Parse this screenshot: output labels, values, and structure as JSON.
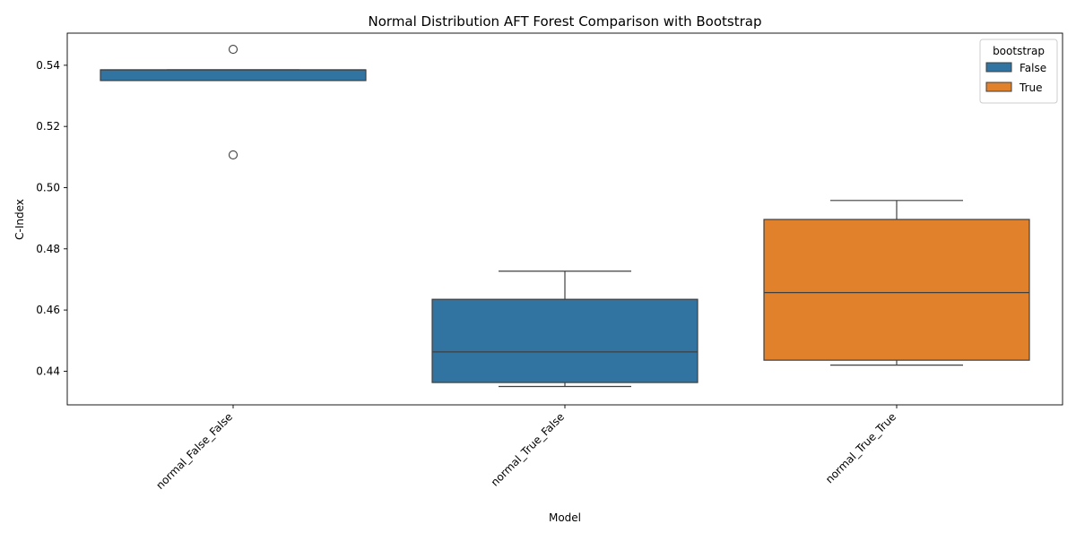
{
  "chart_data": {
    "type": "box",
    "title": "Normal Distribution AFT Forest Comparison with Bootstrap",
    "xlabel": "Model",
    "ylabel": "C-Index",
    "ylim": [
      0.429,
      0.5505
    ],
    "yticks": [
      0.44,
      0.46,
      0.48,
      0.5,
      0.52,
      0.54
    ],
    "categories": [
      "normal_False_False",
      "normal_True_False",
      "normal_True_True"
    ],
    "grid": false,
    "legend": {
      "title": "bootstrap",
      "placement": "top-right",
      "entries": [
        {
          "label": "False",
          "color": "#3274a1"
        },
        {
          "label": "True",
          "color": "#e1812c"
        }
      ]
    },
    "boxes": [
      {
        "category": "normal_False_False",
        "hue": "False",
        "whisker_low": 0.535,
        "q1": 0.535,
        "median": 0.5385,
        "q3": 0.5385,
        "whisker_high": 0.5385,
        "outliers": [
          0.5452,
          0.5107
        ]
      },
      {
        "category": "normal_True_False",
        "hue": "False",
        "whisker_low": 0.435,
        "q1": 0.4363,
        "median": 0.4463,
        "q3": 0.4635,
        "whisker_high": 0.4727,
        "outliers": []
      },
      {
        "category": "normal_True_True",
        "hue": "True",
        "whisker_low": 0.442,
        "q1": 0.4436,
        "median": 0.4657,
        "q3": 0.4896,
        "whisker_high": 0.4958,
        "outliers": []
      }
    ]
  }
}
